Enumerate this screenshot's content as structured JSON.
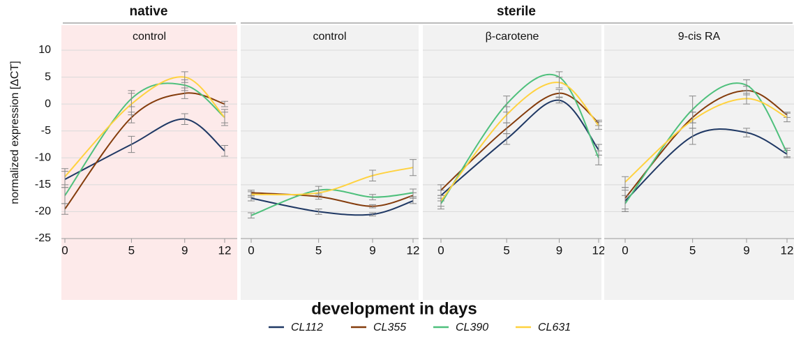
{
  "groups": [
    "native",
    "sterile"
  ],
  "xlabel": "development in days",
  "ylabel": "normalized expression [ΔCT]",
  "chart_data": [
    {
      "type": "line",
      "title": "control",
      "x": [
        0,
        5,
        9,
        12
      ],
      "xlim": [
        0,
        12
      ],
      "xticks": [
        0,
        5,
        9,
        12
      ],
      "ylim": [
        -25,
        10
      ],
      "yticks": [
        -25,
        -20,
        -15,
        -10,
        -5,
        0,
        5,
        10
      ],
      "grid": true,
      "background": "#fdeaea",
      "series": [
        {
          "name": "CL112",
          "color": "#1f3864",
          "values": [
            -14,
            -7.5,
            -2.8,
            -8.7
          ],
          "errors": [
            1.5,
            1.5,
            1,
            1
          ]
        },
        {
          "name": "CL355",
          "color": "#843c0c",
          "values": [
            -19.5,
            -2.5,
            2,
            0
          ],
          "errors": [
            1,
            1,
            1,
            0.5
          ]
        },
        {
          "name": "CL390",
          "color": "#4ec07c",
          "values": [
            -17,
            1,
            3.5,
            -2.5
          ],
          "errors": [
            1.5,
            1.5,
            1,
            1
          ]
        },
        {
          "name": "CL631",
          "color": "#ffd23f",
          "values": [
            -13.5,
            0,
            5,
            -2.5
          ],
          "errors": [
            1.5,
            2,
            1,
            1.5
          ]
        }
      ]
    },
    {
      "type": "line",
      "title": "control",
      "x": [
        0,
        5,
        9,
        12
      ],
      "xlim": [
        0,
        12
      ],
      "xticks": [
        0,
        5,
        9,
        12
      ],
      "ylim": [
        -25,
        10
      ],
      "yticks": [
        -25,
        -20,
        -15,
        -10,
        -5,
        0,
        5,
        10
      ],
      "grid": true,
      "background": "#f2f2f2",
      "series": [
        {
          "name": "CL112",
          "color": "#1f3864",
          "values": [
            -17.5,
            -20,
            -20.5,
            -18
          ],
          "errors": [
            0.5,
            0.5,
            0.3,
            0.5
          ]
        },
        {
          "name": "CL355",
          "color": "#843c0c",
          "values": [
            -16.5,
            -17.2,
            -19,
            -17
          ],
          "errors": [
            0.5,
            0.5,
            0.3,
            0.5
          ]
        },
        {
          "name": "CL390",
          "color": "#4ec07c",
          "values": [
            -20.7,
            -16,
            -17.3,
            -16.5
          ],
          "errors": [
            0.5,
            0.7,
            0.5,
            0.7
          ]
        },
        {
          "name": "CL631",
          "color": "#ffd23f",
          "values": [
            -16.8,
            -16.5,
            -13.3,
            -11.8
          ],
          "errors": [
            0.5,
            0.5,
            1,
            1.5
          ]
        }
      ]
    },
    {
      "type": "line",
      "title": "β-carotene",
      "x": [
        0,
        5,
        9,
        12
      ],
      "xlim": [
        0,
        12
      ],
      "xticks": [
        0,
        5,
        9,
        12
      ],
      "ylim": [
        -25,
        10
      ],
      "yticks": [
        -25,
        -20,
        -15,
        -10,
        -5,
        0,
        5,
        10
      ],
      "grid": true,
      "background": "#f2f2f2",
      "series": [
        {
          "name": "CL112",
          "color": "#1f3864",
          "values": [
            -17,
            -6.5,
            0.7,
            -8.5
          ],
          "errors": [
            1,
            1,
            0.5,
            1
          ]
        },
        {
          "name": "CL355",
          "color": "#843c0c",
          "values": [
            -16,
            -4.5,
            2,
            -3.5
          ],
          "errors": [
            1,
            1,
            0.7,
            0.5
          ]
        },
        {
          "name": "CL390",
          "color": "#4ec07c",
          "values": [
            -18.5,
            0,
            5,
            -10
          ],
          "errors": [
            1,
            1.5,
            1,
            1.3
          ]
        },
        {
          "name": "CL631",
          "color": "#ffd23f",
          "values": [
            -18,
            -2,
            4,
            -4
          ],
          "errors": [
            1,
            1.5,
            1,
            0.7
          ]
        }
      ]
    },
    {
      "type": "line",
      "title": "9-cis RA",
      "x": [
        0,
        5,
        9,
        12
      ],
      "xlim": [
        0,
        12
      ],
      "xticks": [
        0,
        5,
        9,
        12
      ],
      "ylim": [
        -25,
        10
      ],
      "yticks": [
        -25,
        -20,
        -15,
        -10,
        -5,
        0,
        5,
        10
      ],
      "grid": true,
      "background": "#f2f2f2",
      "series": [
        {
          "name": "CL112",
          "color": "#1f3864",
          "values": [
            -18,
            -6,
            -5.3,
            -9.3
          ],
          "errors": [
            2,
            1.5,
            0.8,
            0.7
          ]
        },
        {
          "name": "CL355",
          "color": "#843c0c",
          "values": [
            -17.5,
            -2.5,
            2.5,
            -2
          ],
          "errors": [
            2,
            1,
            0.8,
            0.5
          ]
        },
        {
          "name": "CL390",
          "color": "#4ec07c",
          "values": [
            -18.5,
            -1,
            3.5,
            -9
          ],
          "errors": [
            1.5,
            2.5,
            1,
            0.8
          ]
        },
        {
          "name": "CL631",
          "color": "#ffd23f",
          "values": [
            -14.5,
            -3,
            1,
            -2.5
          ],
          "errors": [
            1,
            1.5,
            1,
            0.8
          ]
        }
      ]
    }
  ]
}
